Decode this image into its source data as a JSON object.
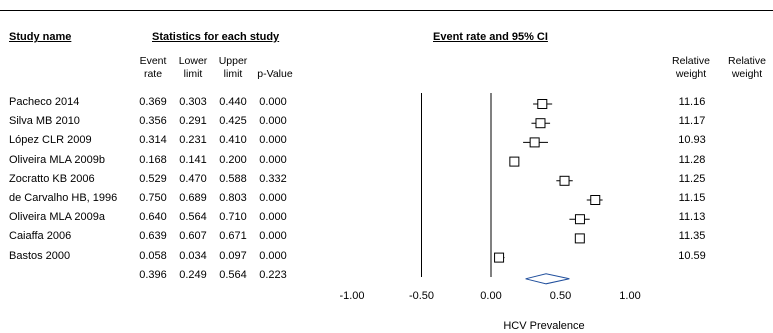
{
  "headers": {
    "study_name": "Study name",
    "statistics": "Statistics for each study",
    "plot": "Event rate and 95% CI"
  },
  "columns": [
    {
      "l1": "Event",
      "l2": "rate"
    },
    {
      "l1": "Lower",
      "l2": "limit"
    },
    {
      "l1": "Upper",
      "l2": "limit"
    },
    {
      "l1": "p-Value",
      "l2": ""
    },
    {
      "l1": "Relative",
      "l2": "weight"
    },
    {
      "l1": "Relative",
      "l2": "weight"
    }
  ],
  "chart_data": {
    "type": "forest",
    "xlabel": "HCV Prevalence",
    "xlim": [
      -1.0,
      1.0
    ],
    "x_ticks": [
      "-1.00",
      "-0.50",
      "0.00",
      "0.50",
      "1.00"
    ],
    "x_tick_values": [
      -1.0,
      -0.5,
      0.0,
      0.5,
      1.0
    ],
    "reference_lines": [
      -0.5,
      0.0
    ],
    "studies": [
      {
        "name": "Pacheco 2014",
        "rate": "0.369",
        "lower": "0.303",
        "upper": "0.440",
        "p": "0.000",
        "weight": "11.16"
      },
      {
        "name": "Silva MB 2010",
        "rate": "0.356",
        "lower": "0.291",
        "upper": "0.425",
        "p": "0.000",
        "weight": "11.17"
      },
      {
        "name": "López CLR 2009",
        "rate": "0.314",
        "lower": "0.231",
        "upper": "0.410",
        "p": "0.000",
        "weight": "10.93"
      },
      {
        "name": "Oliveira MLA 2009b",
        "rate": "0.168",
        "lower": "0.141",
        "upper": "0.200",
        "p": "0.000",
        "weight": "11.28"
      },
      {
        "name": "Zocratto KB 2006",
        "rate": "0.529",
        "lower": "0.470",
        "upper": "0.588",
        "p": "0.332",
        "weight": "11.25"
      },
      {
        "name": "de Carvalho HB, 1996",
        "rate": "0.750",
        "lower": "0.689",
        "upper": "0.803",
        "p": "0.000",
        "weight": "11.15"
      },
      {
        "name": "Oliveira MLA 2009a",
        "rate": "0.640",
        "lower": "0.564",
        "upper": "0.710",
        "p": "0.000",
        "weight": "11.13"
      },
      {
        "name": "Caiaffa 2006",
        "rate": "0.639",
        "lower": "0.607",
        "upper": "0.671",
        "p": "0.000",
        "weight": "11.35"
      },
      {
        "name": "Bastos 2000",
        "rate": "0.058",
        "lower": "0.034",
        "upper": "0.097",
        "p": "0.000",
        "weight": "10.59"
      }
    ],
    "summary": {
      "name": "",
      "rate": "0.396",
      "lower": "0.249",
      "upper": "0.564",
      "p": "0.223",
      "weight": ""
    }
  }
}
